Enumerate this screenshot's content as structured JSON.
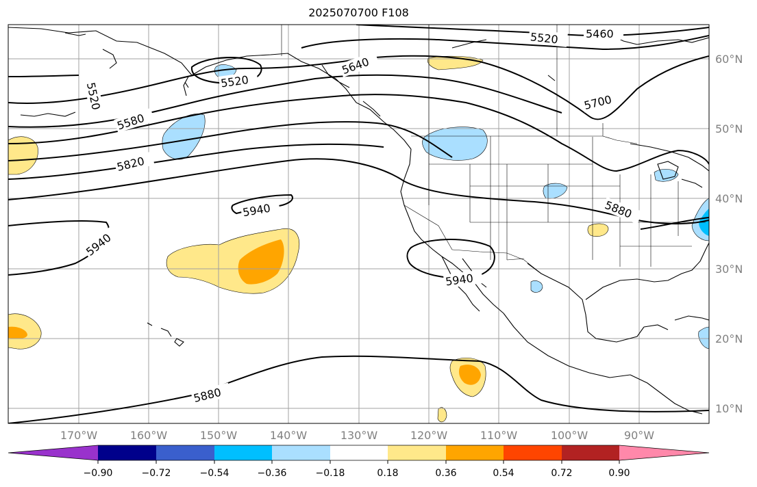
{
  "title": "2025070700 F108",
  "map": {
    "lat_labels": [
      "60°N",
      "50°N",
      "40°N",
      "30°N",
      "20°N",
      "10°N"
    ],
    "lon_labels": [
      "170°W",
      "160°W",
      "150°W",
      "140°W",
      "130°W",
      "120°W",
      "110°W",
      "100°W",
      "90°W"
    ],
    "contour_labels": [
      "5460",
      "5520",
      "5640",
      "5520",
      "5520",
      "5580",
      "5700",
      "5820",
      "5940",
      "5880",
      "5940",
      "5940",
      "5880"
    ]
  },
  "colorbar": {
    "ticks": [
      "−0.90",
      "−0.72",
      "−0.54",
      "−0.36",
      "−0.18",
      "0.18",
      "0.36",
      "0.54",
      "0.72",
      "0.90"
    ],
    "colors": [
      "#9932cc",
      "#00008b",
      "#3a5fcd",
      "#00bfff",
      "#aadfff",
      "#ffffff",
      "#ffe88a",
      "#ffa500",
      "#ff4500",
      "#b22222",
      "#ff88aa"
    ]
  }
}
